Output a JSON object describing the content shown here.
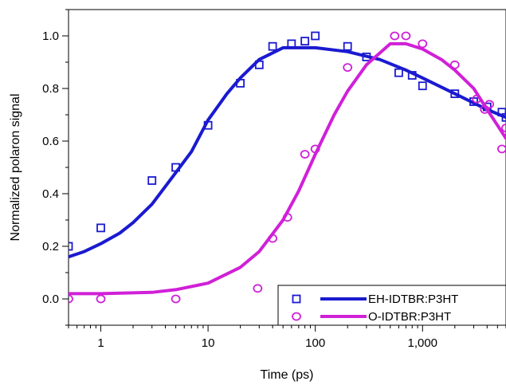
{
  "chart_data": {
    "type": "scatter",
    "xlabel": "Time (ps)",
    "ylabel": "Normalized polaron signal",
    "xscale": "log",
    "xlim": [
      0.5,
      6000
    ],
    "ylim": [
      -0.1,
      1.1
    ],
    "x_ticks": [
      {
        "value": 1,
        "label": "1"
      },
      {
        "value": 10,
        "label": "10"
      },
      {
        "value": 100,
        "label": "100"
      },
      {
        "value": 1000,
        "label": "1,000"
      }
    ],
    "y_ticks": [
      {
        "value": 0.0,
        "label": "0.0"
      },
      {
        "value": 0.2,
        "label": "0.2"
      },
      {
        "value": 0.4,
        "label": "0.4"
      },
      {
        "value": 0.6,
        "label": "0.6"
      },
      {
        "value": 0.8,
        "label": "0.8"
      },
      {
        "value": 1.0,
        "label": "1.0"
      }
    ],
    "legend_position": "bottom-right",
    "series": [
      {
        "name": "EH-IDTBR:P3HT",
        "color": "#1a1ad0",
        "marker": "square",
        "points": [
          {
            "x": 0.5,
            "y": 0.2
          },
          {
            "x": 1,
            "y": 0.27
          },
          {
            "x": 3,
            "y": 0.45
          },
          {
            "x": 5,
            "y": 0.5
          },
          {
            "x": 10,
            "y": 0.66
          },
          {
            "x": 20,
            "y": 0.82
          },
          {
            "x": 30,
            "y": 0.89
          },
          {
            "x": 40,
            "y": 0.96
          },
          {
            "x": 60,
            "y": 0.97
          },
          {
            "x": 80,
            "y": 0.98
          },
          {
            "x": 100,
            "y": 1.0
          },
          {
            "x": 200,
            "y": 0.96
          },
          {
            "x": 300,
            "y": 0.92
          },
          {
            "x": 600,
            "y": 0.86
          },
          {
            "x": 800,
            "y": 0.85
          },
          {
            "x": 1000,
            "y": 0.81
          },
          {
            "x": 2000,
            "y": 0.78
          },
          {
            "x": 3000,
            "y": 0.75
          },
          {
            "x": 4000,
            "y": 0.73
          },
          {
            "x": 5500,
            "y": 0.71
          },
          {
            "x": 6000,
            "y": 0.69
          }
        ],
        "fit": [
          {
            "x": 0.5,
            "y": 0.16
          },
          {
            "x": 0.7,
            "y": 0.18
          },
          {
            "x": 1,
            "y": 0.21
          },
          {
            "x": 1.5,
            "y": 0.25
          },
          {
            "x": 2,
            "y": 0.29
          },
          {
            "x": 3,
            "y": 0.36
          },
          {
            "x": 5,
            "y": 0.48
          },
          {
            "x": 7,
            "y": 0.56
          },
          {
            "x": 10,
            "y": 0.68
          },
          {
            "x": 15,
            "y": 0.78
          },
          {
            "x": 20,
            "y": 0.84
          },
          {
            "x": 30,
            "y": 0.91
          },
          {
            "x": 50,
            "y": 0.955
          },
          {
            "x": 100,
            "y": 0.955
          },
          {
            "x": 200,
            "y": 0.94
          },
          {
            "x": 400,
            "y": 0.91
          },
          {
            "x": 700,
            "y": 0.87
          },
          {
            "x": 1000,
            "y": 0.84
          },
          {
            "x": 2000,
            "y": 0.78
          },
          {
            "x": 4000,
            "y": 0.72
          },
          {
            "x": 6000,
            "y": 0.69
          }
        ]
      },
      {
        "name": "O-IDTBR:P3HT",
        "color": "#d020d8",
        "marker": "circle",
        "points": [
          {
            "x": 0.5,
            "y": 0.0
          },
          {
            "x": 1,
            "y": 0.0
          },
          {
            "x": 5,
            "y": 0.0
          },
          {
            "x": 29,
            "y": 0.04
          },
          {
            "x": 40,
            "y": 0.23
          },
          {
            "x": 55,
            "y": 0.31
          },
          {
            "x": 80,
            "y": 0.55
          },
          {
            "x": 100,
            "y": 0.57
          },
          {
            "x": 200,
            "y": 0.88
          },
          {
            "x": 550,
            "y": 1.0
          },
          {
            "x": 700,
            "y": 1.0
          },
          {
            "x": 1000,
            "y": 0.97
          },
          {
            "x": 2000,
            "y": 0.89
          },
          {
            "x": 3200,
            "y": 0.76
          },
          {
            "x": 3800,
            "y": 0.72
          },
          {
            "x": 4200,
            "y": 0.74
          },
          {
            "x": 5500,
            "y": 0.57
          },
          {
            "x": 6000,
            "y": 0.65
          }
        ],
        "fit": [
          {
            "x": 0.5,
            "y": 0.02
          },
          {
            "x": 1,
            "y": 0.02
          },
          {
            "x": 3,
            "y": 0.025
          },
          {
            "x": 5,
            "y": 0.035
          },
          {
            "x": 10,
            "y": 0.06
          },
          {
            "x": 20,
            "y": 0.12
          },
          {
            "x": 30,
            "y": 0.18
          },
          {
            "x": 50,
            "y": 0.3
          },
          {
            "x": 70,
            "y": 0.41
          },
          {
            "x": 100,
            "y": 0.55
          },
          {
            "x": 150,
            "y": 0.7
          },
          {
            "x": 200,
            "y": 0.79
          },
          {
            "x": 300,
            "y": 0.89
          },
          {
            "x": 500,
            "y": 0.97
          },
          {
            "x": 700,
            "y": 0.97
          },
          {
            "x": 1000,
            "y": 0.95
          },
          {
            "x": 1500,
            "y": 0.91
          },
          {
            "x": 2000,
            "y": 0.87
          },
          {
            "x": 3000,
            "y": 0.8
          },
          {
            "x": 4000,
            "y": 0.72
          },
          {
            "x": 5000,
            "y": 0.66
          },
          {
            "x": 6000,
            "y": 0.61
          }
        ]
      }
    ]
  }
}
